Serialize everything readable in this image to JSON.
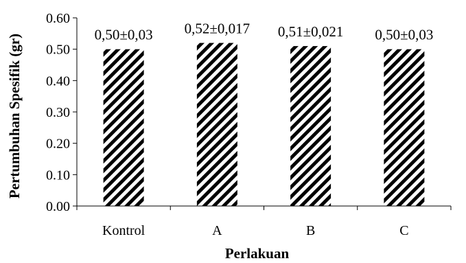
{
  "chart_data": {
    "type": "bar",
    "title": "",
    "xlabel": "Perlakuan",
    "ylabel": "Pertumbuhan Spesifik (gr)",
    "categories": [
      "Kontrol",
      "A",
      "B",
      "C"
    ],
    "values": [
      0.5,
      0.52,
      0.51,
      0.5
    ],
    "data_labels": [
      "0,50±0,03",
      "0,52±0,017",
      "0,51±0,021",
      "0,50±0,03"
    ],
    "ylim": [
      0,
      0.6
    ],
    "yticks": [
      0.0,
      0.1,
      0.2,
      0.3,
      0.4,
      0.5,
      0.6
    ],
    "ytick_labels": [
      "0.00",
      "0.10",
      "0.20",
      "0.30",
      "0.40",
      "0.50",
      "0.60"
    ],
    "grid": false,
    "legend": "none",
    "bar_pattern": "diagonal-stripes",
    "bar_color": "#000000",
    "background": "#ffffff"
  }
}
